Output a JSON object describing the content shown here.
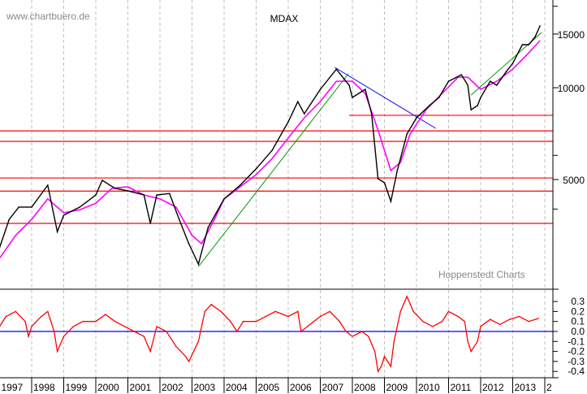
{
  "chart_data": [
    {
      "type": "line",
      "title": "MDAX",
      "watermark": "www.chartbuero.de",
      "source": "Hoppenstedt Charts",
      "y_scale": "log",
      "ylim": [
        2000,
        19400
      ],
      "xlim": [
        1997.0,
        2014.2
      ],
      "y_tick_labels": [
        {
          "value": 15000,
          "label": "15000"
        },
        {
          "value": 10000,
          "label": "10000"
        },
        {
          "value": 5000,
          "label": "5000"
        }
      ],
      "y_minor_ticks": [
        18500,
        6000,
        4000
      ],
      "x_tick_labels": [
        "1997",
        "1998",
        "1999",
        "2000",
        "2001",
        "2002",
        "2003",
        "2004",
        "2005",
        "2006",
        "2007",
        "2008",
        "2009",
        "2010",
        "2011",
        "2012",
        "2013",
        "2"
      ],
      "grid": "vertical dashed at year boundaries",
      "colors": {
        "price": "#000000",
        "moving_average": "#ff00ff",
        "support": "#ff0000",
        "uptrend": "#009900",
        "downtrend": "#0000ff"
      },
      "price": {
        "x": [
          1997.0,
          1997.3,
          1997.6,
          1998.0,
          1998.5,
          1998.8,
          1999.0,
          1999.5,
          2000.0,
          2000.2,
          2000.6,
          2001.0,
          2001.5,
          2001.7,
          2001.9,
          2002.3,
          2002.6,
          2002.9,
          2003.2,
          2003.5,
          2004.0,
          2004.5,
          2005.0,
          2005.5,
          2006.0,
          2006.3,
          2006.5,
          2007.0,
          2007.5,
          2007.9,
          2008.0,
          2008.4,
          2008.6,
          2008.8,
          2009.0,
          2009.2,
          2009.4,
          2009.7,
          2010.0,
          2010.4,
          2010.7,
          2011.0,
          2011.4,
          2011.6,
          2011.7,
          2011.9,
          2012.0,
          2012.3,
          2012.5,
          2012.8,
          2013.0,
          2013.3,
          2013.5,
          2013.7,
          2013.85
        ],
        "y": [
          2990,
          3700,
          4060,
          4060,
          4790,
          3370,
          3820,
          4060,
          4450,
          4970,
          4680,
          4590,
          4450,
          3590,
          4450,
          4500,
          3700,
          3080,
          2640,
          3480,
          4320,
          4790,
          5420,
          6240,
          7730,
          9000,
          8220,
          9880,
          11500,
          10180,
          9290,
          9880,
          8220,
          5030,
          4880,
          4240,
          5350,
          7050,
          7970,
          8740,
          9290,
          10500,
          11030,
          10190,
          8470,
          8740,
          9290,
          10500,
          10190,
          11300,
          12020,
          13840,
          13840,
          14700,
          15950
        ]
      },
      "moving_average": {
        "x": [
          1997.0,
          1997.5,
          1998.0,
          1998.5,
          1999.0,
          1999.5,
          2000.0,
          2000.5,
          2001.0,
          2001.5,
          2002.0,
          2002.5,
          2003.0,
          2003.3,
          2003.7,
          2004.0,
          2004.5,
          2005.0,
          2005.5,
          2006.0,
          2006.5,
          2007.0,
          2007.5,
          2008.0,
          2008.4,
          2008.8,
          2009.2,
          2009.5,
          2009.8,
          2010.3,
          2010.8,
          2011.3,
          2011.6,
          2012.0,
          2012.5,
          2013.0,
          2013.5,
          2013.85
        ],
        "y": [
          2760,
          3280,
          3700,
          4320,
          3890,
          3980,
          4180,
          4680,
          4730,
          4450,
          4320,
          4060,
          3280,
          3080,
          3700,
          4320,
          4730,
          5190,
          5860,
          6840,
          7970,
          9010,
          10500,
          10500,
          9580,
          7270,
          5350,
          5690,
          7050,
          8470,
          9580,
          10830,
          10830,
          9880,
          10500,
          11510,
          13010,
          14270
        ]
      },
      "horizontal_lines": [
        {
          "value": 8120,
          "from": 2007.9
        },
        {
          "value": 7220,
          "from": 1997.0
        },
        {
          "value": 6670,
          "from": 1997.0
        },
        {
          "value": 5060,
          "from": 1997.0
        },
        {
          "value": 4580,
          "from": 1997.0
        },
        {
          "value": 3590,
          "from": 1997.0
        }
      ],
      "trendlines": [
        {
          "kind": "uptrend",
          "x": [
            2003.2,
            2007.87
          ],
          "y": [
            2590,
            11100
          ]
        },
        {
          "kind": "uptrend",
          "x": [
            2011.7,
            2013.9
          ],
          "y": [
            9460,
            15170
          ]
        },
        {
          "kind": "downtrend",
          "x": [
            2007.45,
            2010.6
          ],
          "y": [
            11660,
            7360
          ]
        }
      ]
    },
    {
      "type": "line",
      "ylim": [
        -0.45,
        0.42
      ],
      "y_tick_labels": [
        "0.3",
        "0.2",
        "0.1",
        "0.0",
        "-0.1",
        "-0.2",
        "-0.3",
        "-0.4"
      ],
      "y_tick_values": [
        0.3,
        0.2,
        0.1,
        0.0,
        -0.1,
        -0.2,
        -0.3,
        -0.4
      ],
      "baseline": 0.0,
      "colors": {
        "indicator": "#ff0000",
        "baseline": "#0000ff"
      },
      "indicator": {
        "x": [
          1997.0,
          1997.2,
          1997.5,
          1997.8,
          1997.9,
          1998.0,
          1998.3,
          1998.5,
          1998.7,
          1998.8,
          1999.0,
          1999.3,
          1999.6,
          2000.0,
          2000.3,
          2000.6,
          2000.9,
          2001.2,
          2001.5,
          2001.7,
          2001.9,
          2002.2,
          2002.5,
          2002.8,
          2002.9,
          2003.2,
          2003.4,
          2003.6,
          2003.9,
          2004.2,
          2004.4,
          2004.6,
          2005.0,
          2005.3,
          2005.6,
          2006.0,
          2006.3,
          2006.4,
          2006.6,
          2007.0,
          2007.3,
          2007.6,
          2007.8,
          2008.0,
          2008.3,
          2008.5,
          2008.7,
          2008.8,
          2008.9,
          2009.0,
          2009.2,
          2009.3,
          2009.5,
          2009.7,
          2009.9,
          2010.2,
          2010.5,
          2010.8,
          2011.0,
          2011.3,
          2011.5,
          2011.6,
          2011.7,
          2011.9,
          2012.0,
          2012.3,
          2012.6,
          2012.9,
          2013.2,
          2013.5,
          2013.8
        ],
        "y": [
          0.05,
          0.15,
          0.2,
          0.1,
          -0.05,
          0.05,
          0.15,
          0.2,
          0.0,
          -0.2,
          -0.05,
          0.05,
          0.1,
          0.1,
          0.17,
          0.1,
          0.05,
          0.0,
          -0.05,
          -0.2,
          0.05,
          0.0,
          -0.15,
          -0.25,
          -0.3,
          -0.1,
          0.2,
          0.27,
          0.2,
          0.1,
          0.0,
          0.1,
          0.1,
          0.15,
          0.2,
          0.15,
          0.2,
          0.0,
          0.05,
          0.15,
          0.2,
          0.1,
          0.0,
          -0.05,
          0.0,
          -0.05,
          -0.2,
          -0.4,
          -0.35,
          -0.25,
          -0.35,
          -0.1,
          0.2,
          0.35,
          0.2,
          0.1,
          0.05,
          0.1,
          0.2,
          0.15,
          0.1,
          -0.1,
          -0.2,
          -0.1,
          0.05,
          0.12,
          0.07,
          0.12,
          0.15,
          0.1,
          0.13
        ]
      }
    }
  ]
}
